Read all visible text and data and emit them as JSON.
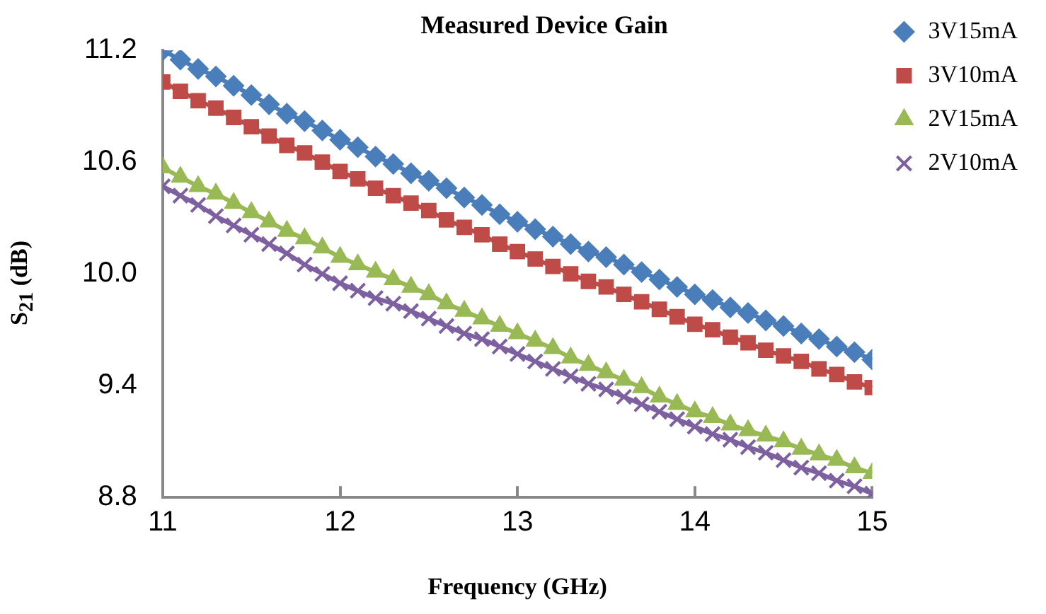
{
  "chart_data": {
    "type": "line",
    "title": "Measured Device Gain",
    "xlabel": "Frequency (GHz)",
    "ylabel": "S$_{21}$ (dB)",
    "x": [
      11.0,
      11.1,
      11.2,
      11.3,
      11.4,
      11.5,
      11.6,
      11.7,
      11.8,
      11.9,
      12.0,
      12.1,
      12.2,
      12.3,
      12.4,
      12.5,
      12.6,
      12.7,
      12.8,
      12.9,
      13.0,
      13.1,
      13.2,
      13.3,
      13.4,
      13.5,
      13.6,
      13.7,
      13.8,
      13.9,
      14.0,
      14.1,
      14.2,
      14.3,
      14.4,
      14.5,
      14.6,
      14.7,
      14.8,
      14.9,
      15.0
    ],
    "series": [
      {
        "name": "3V15mA",
        "color": "#4a7ebb",
        "marker": "diamond",
        "values": [
          11.2,
          11.15,
          11.1,
          11.06,
          11.01,
          10.96,
          10.91,
          10.86,
          10.82,
          10.77,
          10.72,
          10.68,
          10.63,
          10.59,
          10.54,
          10.5,
          10.46,
          10.41,
          10.37,
          10.32,
          10.28,
          10.24,
          10.2,
          10.16,
          10.12,
          10.09,
          10.05,
          10.01,
          9.97,
          9.93,
          9.89,
          9.86,
          9.82,
          9.79,
          9.75,
          9.72,
          9.68,
          9.65,
          9.61,
          9.58,
          9.54
        ]
      },
      {
        "name": "3V10mA",
        "color": "#be4b48",
        "marker": "square",
        "values": [
          11.03,
          10.98,
          10.93,
          10.89,
          10.84,
          10.79,
          10.74,
          10.69,
          10.65,
          10.6,
          10.55,
          10.51,
          10.46,
          10.42,
          10.38,
          10.34,
          10.29,
          10.25,
          10.21,
          10.16,
          10.12,
          10.08,
          10.04,
          10.0,
          9.96,
          9.93,
          9.89,
          9.85,
          9.81,
          9.77,
          9.73,
          9.7,
          9.66,
          9.63,
          9.59,
          9.56,
          9.53,
          9.49,
          9.46,
          9.42,
          9.39
        ]
      },
      {
        "name": "2V15mA",
        "color": "#98b954",
        "marker": "triangle",
        "values": [
          10.57,
          10.52,
          10.47,
          10.43,
          10.38,
          10.33,
          10.28,
          10.23,
          10.19,
          10.14,
          10.09,
          10.05,
          10.01,
          9.97,
          9.93,
          9.89,
          9.84,
          9.8,
          9.76,
          9.72,
          9.68,
          9.64,
          9.6,
          9.55,
          9.51,
          9.47,
          9.43,
          9.39,
          9.34,
          9.3,
          9.26,
          9.23,
          9.19,
          9.16,
          9.13,
          9.1,
          9.06,
          9.03,
          9.0,
          8.96,
          8.93
        ]
      },
      {
        "name": "2V10mA",
        "color": "#7d60a0",
        "marker": "cross",
        "values": [
          10.47,
          10.42,
          10.37,
          10.31,
          10.26,
          10.21,
          10.16,
          10.11,
          10.05,
          10.0,
          9.95,
          9.91,
          9.87,
          9.84,
          9.8,
          9.76,
          9.72,
          9.68,
          9.65,
          9.61,
          9.57,
          9.53,
          9.49,
          9.45,
          9.41,
          9.38,
          9.34,
          9.3,
          9.26,
          9.22,
          9.18,
          9.14,
          9.11,
          9.07,
          9.04,
          9.0,
          8.96,
          8.93,
          8.89,
          8.86,
          8.82
        ]
      }
    ],
    "xlim": [
      11,
      15
    ],
    "xticks": [
      11,
      12,
      13,
      14,
      15
    ],
    "ylim": [
      8.8,
      11.2
    ],
    "yticks": [
      8.8,
      9.4,
      {
        "value": 10,
        "label": "10.0"
      },
      10.6,
      11.2
    ],
    "grid": false,
    "legend": "top right"
  }
}
